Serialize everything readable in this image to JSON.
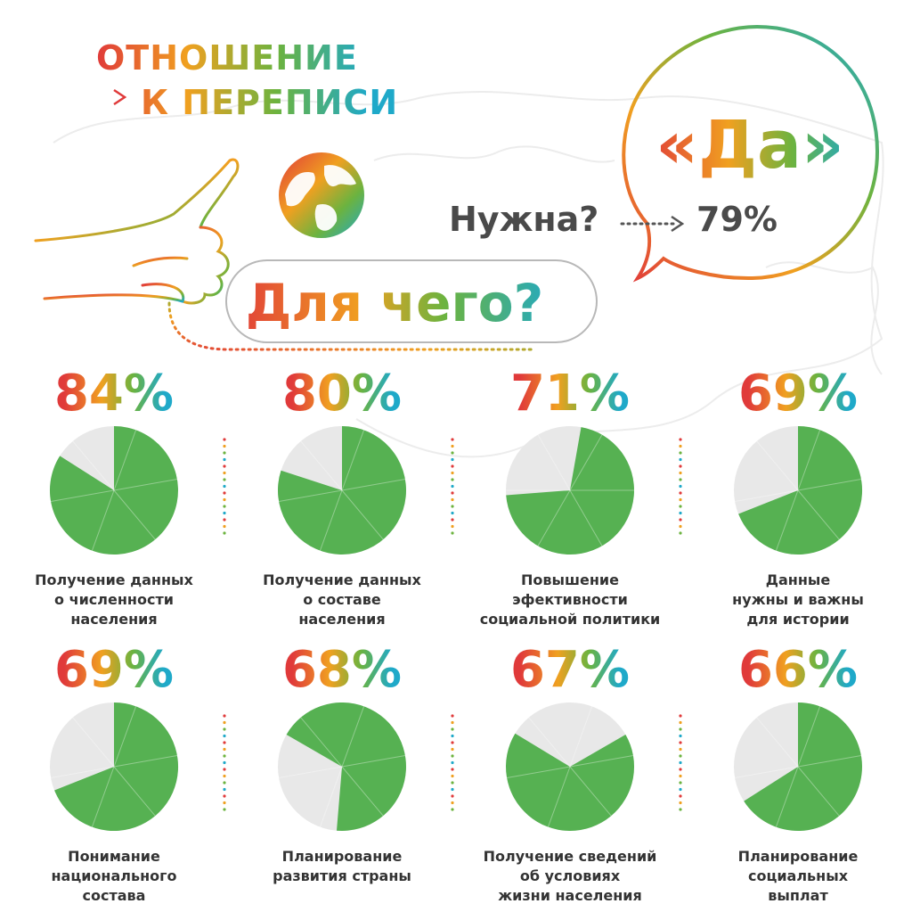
{
  "header": {
    "title_line1": "ОТНОШЕНИЕ",
    "title_line2": "К ПЕРЕПИСИ"
  },
  "callout": {
    "answer": "«Да»",
    "question": "Нужна?",
    "value": "79%"
  },
  "why": {
    "label": "Для чего?"
  },
  "icons": [
    "globe-icon",
    "hand-thumbs-up-icon"
  ],
  "colors": {
    "pie_fill": "#56b152",
    "pie_rest": "#e8e8e8",
    "text_dark": "#4a4a4a",
    "gradient": [
      "#e03a3a",
      "#f0a020",
      "#6cb33f",
      "#1fa9c9"
    ]
  },
  "chart_data": {
    "type": "pie",
    "items": [
      {
        "label": "84%",
        "value": 84,
        "caption": "Получение данных\nо численности\nнаселения"
      },
      {
        "label": "80%",
        "value": 80,
        "caption": "Получение данных\nо составе\nнаселения"
      },
      {
        "label": "71%",
        "value": 71,
        "caption": "Повышение\nэфективности\nсоциальной политики"
      },
      {
        "label": "69%",
        "value": 69,
        "caption": "Данные\nнужны и важны\nдля истории"
      },
      {
        "label": "69%",
        "value": 69,
        "caption": "Понимание\nнационального\nсостава"
      },
      {
        "label": "68%",
        "value": 68,
        "caption": "Планирование\nразвития страны"
      },
      {
        "label": "67%",
        "value": 67,
        "caption": "Получение сведений\nоб условиях\nжизни населения"
      },
      {
        "label": "66%",
        "value": 66,
        "caption": "Планирование\nсоциальных\nвыплат"
      }
    ]
  }
}
